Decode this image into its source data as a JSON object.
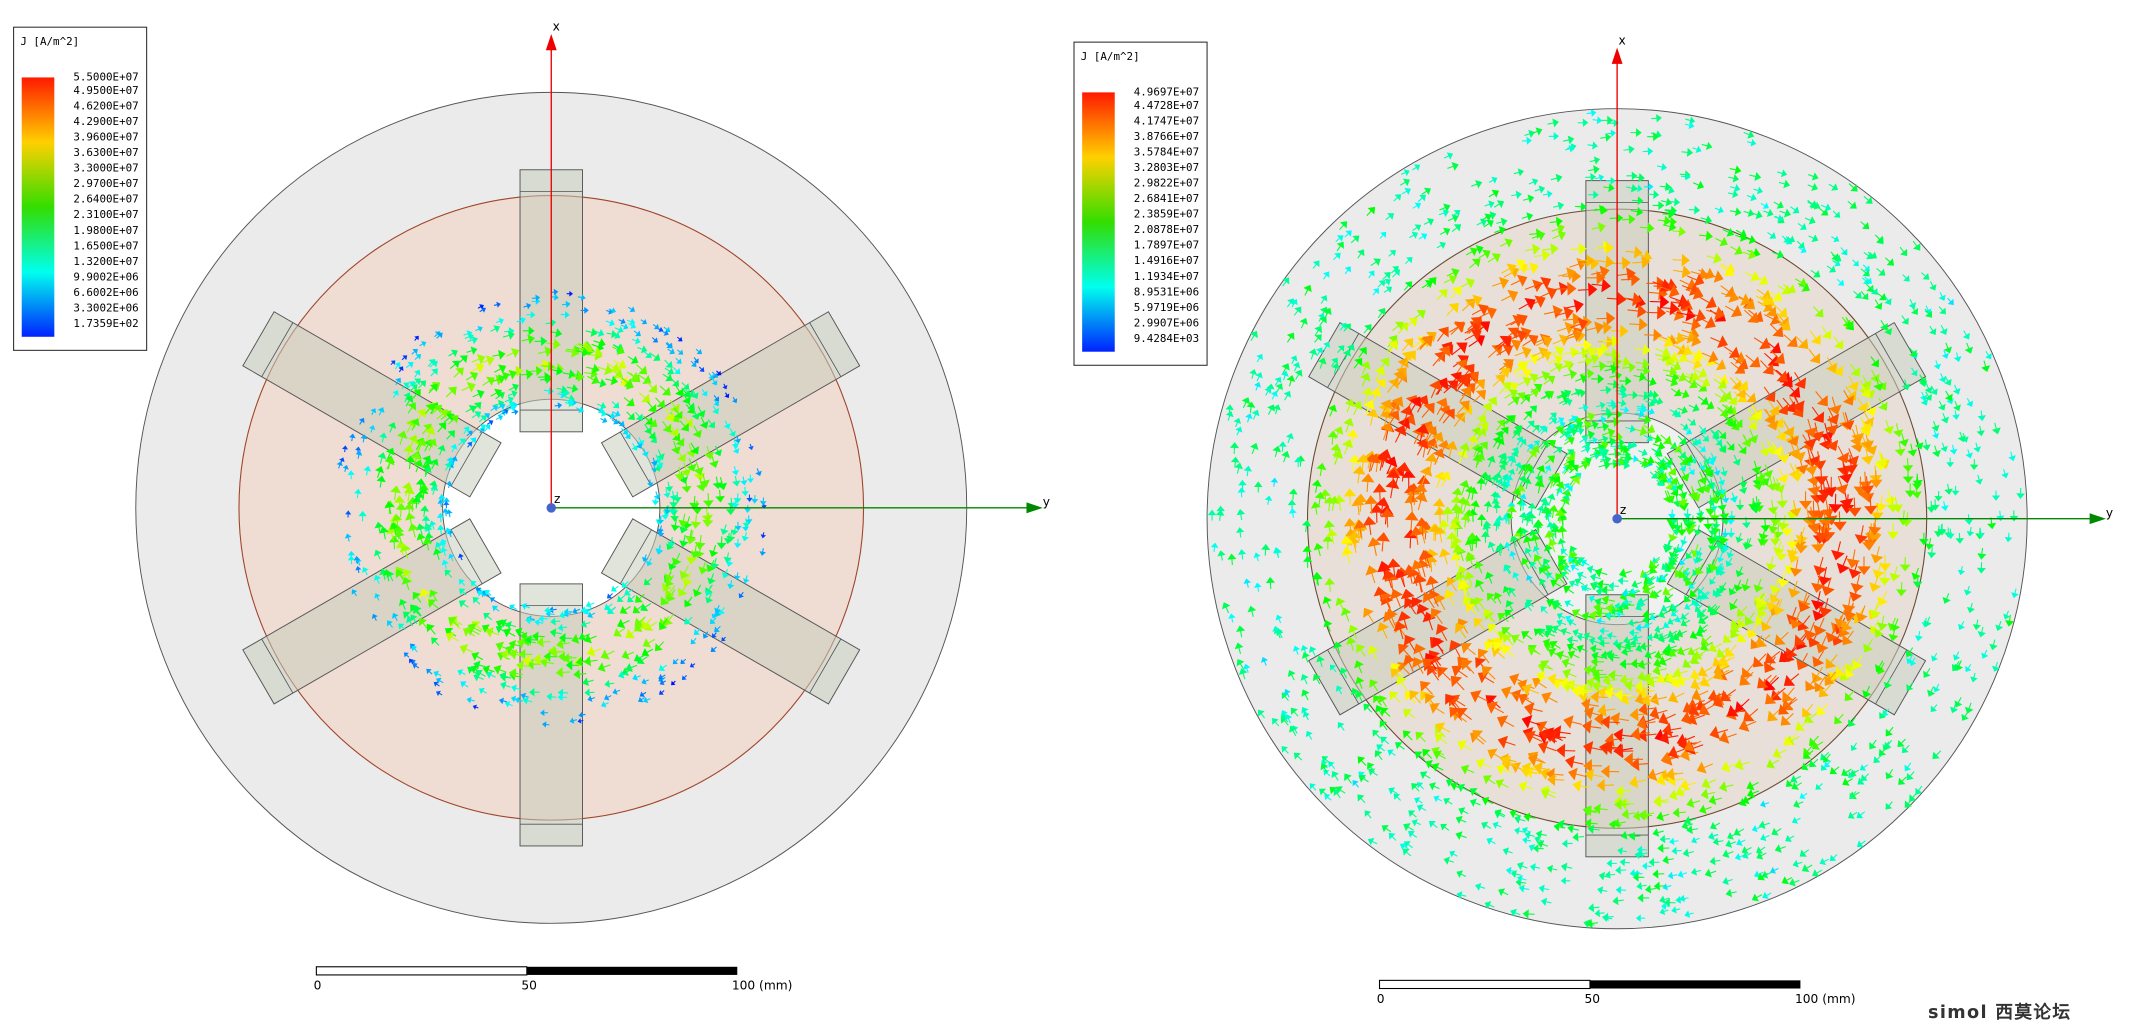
{
  "panels": [
    {
      "legend": {
        "title": "J [A/m^2]",
        "labels": [
          "5.5000E+07",
          "4.9500E+07",
          "4.6200E+07",
          "4.2900E+07",
          "3.9600E+07",
          "3.6300E+07",
          "3.3000E+07",
          "2.9700E+07",
          "2.6400E+07",
          "2.3100E+07",
          "1.9800E+07",
          "1.6500E+07",
          "1.3200E+07",
          "9.9002E+06",
          "6.6002E+06",
          "3.3002E+06",
          "1.7359E+02"
        ]
      },
      "axes": {
        "x": "x",
        "y": "y",
        "z": "z"
      },
      "scale": {
        "labels": [
          "0",
          "50",
          "100 (mm)"
        ]
      }
    },
    {
      "legend": {
        "title": "J [A/m^2]",
        "labels": [
          "4.9697E+07",
          "4.4728E+07",
          "4.1747E+07",
          "3.8766E+07",
          "3.5784E+07",
          "3.2803E+07",
          "2.9822E+07",
          "2.6841E+07",
          "2.3859E+07",
          "2.0878E+07",
          "1.7897E+07",
          "1.4916E+07",
          "1.1934E+07",
          "8.9531E+06",
          "5.9719E+06",
          "2.9907E+06",
          "9.4284E+03"
        ]
      },
      "axes": {
        "x": "x",
        "y": "y",
        "z": "z"
      },
      "scale": {
        "labels": [
          "0",
          "50",
          "100 (mm)"
        ]
      }
    }
  ],
  "watermark": "simol 西莫论坛"
}
